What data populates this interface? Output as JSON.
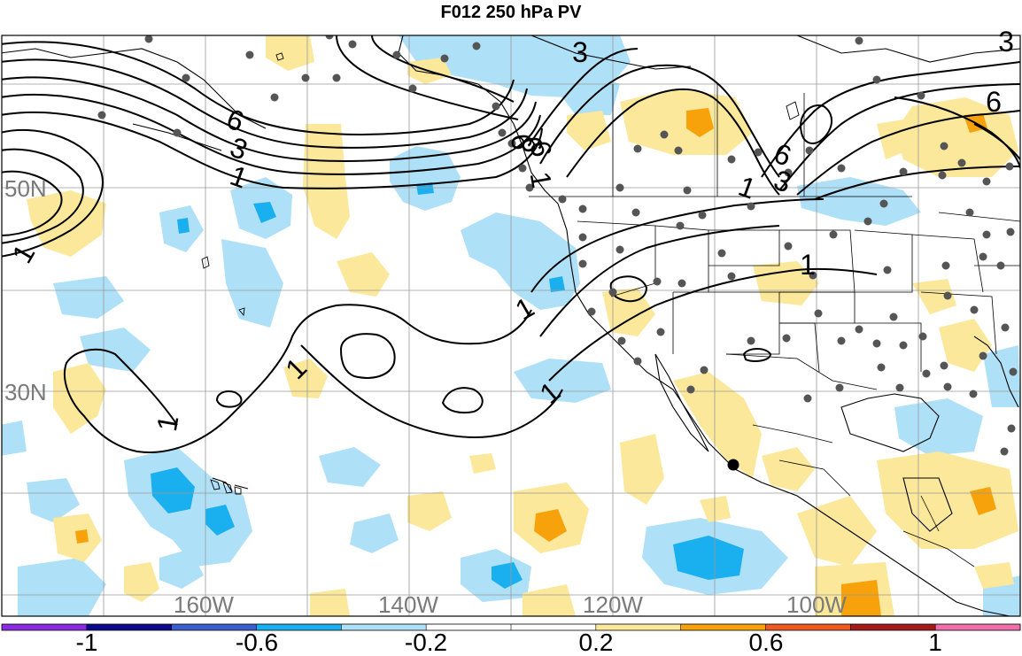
{
  "title": "F012 250 hPa PV",
  "lat_labels": [
    "50N",
    "30N"
  ],
  "lon_labels": [
    "160W",
    "140W",
    "120W",
    "100W"
  ],
  "contour_labels": [
    "6",
    "3",
    "1",
    "1",
    "3",
    "6",
    "3",
    "6",
    "6",
    "6",
    "6",
    "3",
    "1",
    "1",
    "1",
    "1",
    "1",
    "1"
  ],
  "colorbar": {
    "colors": [
      "#8a2be2",
      "#0a0a8c",
      "#3a5fcd",
      "#1ab0ef",
      "#aee0f8",
      "#ffffff",
      "#ffffff",
      "#fbe89a",
      "#f7a20b",
      "#ee5a1f",
      "#a51a1a",
      "#ef6fa8"
    ],
    "tick_labels": [
      "-1",
      "-0.6",
      "-0.2",
      "0.2",
      "0.6",
      "1"
    ]
  },
  "legend_colors": {
    "negative_light": "#aee0f8",
    "negative_medium": "#1ab0ef",
    "positive_light": "#fbe89a",
    "positive_medium": "#f7a20b",
    "coastline": "#000000",
    "station_dot": "#555555"
  }
}
